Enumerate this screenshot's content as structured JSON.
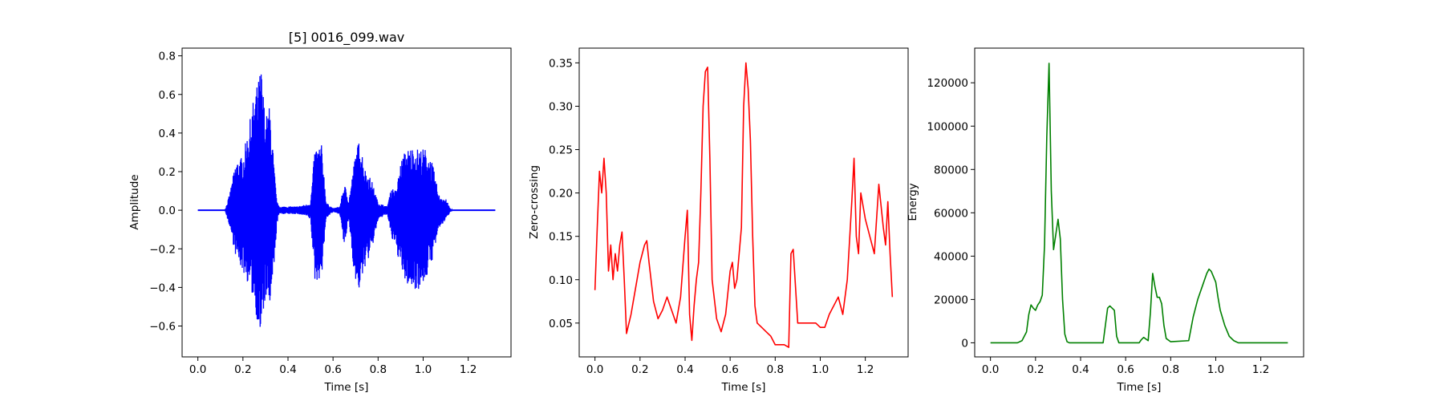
{
  "chart_data": [
    {
      "type": "line",
      "title": "[5] 0016_099.wav",
      "xlabel": "Time [s]",
      "ylabel": "Amplitude",
      "color": "#0000ff",
      "xlim": [
        -0.07,
        1.39
      ],
      "ylim": [
        -0.76,
        0.84
      ],
      "xticks": [
        "0.0",
        "0.2",
        "0.4",
        "0.6",
        "0.8",
        "1.0",
        "1.2"
      ],
      "xtick_values": [
        0.0,
        0.2,
        0.4,
        0.6,
        0.8,
        1.0,
        1.2
      ],
      "yticks": [
        "−0.6",
        "−0.4",
        "−0.2",
        "0.0",
        "0.2",
        "0.4",
        "0.6",
        "0.8"
      ],
      "ytick_values": [
        -0.6,
        -0.4,
        -0.2,
        0.0,
        0.2,
        0.4,
        0.6,
        0.8
      ],
      "x_range": [
        0.0,
        1.32
      ],
      "envelope": {
        "t": [
          0.0,
          0.12,
          0.14,
          0.17,
          0.2,
          0.23,
          0.25,
          0.27,
          0.28,
          0.3,
          0.32,
          0.34,
          0.35,
          0.36,
          0.4,
          0.44,
          0.48,
          0.5,
          0.52,
          0.55,
          0.57,
          0.6,
          0.63,
          0.65,
          0.66,
          0.67,
          0.7,
          0.72,
          0.74,
          0.77,
          0.8,
          0.84,
          0.86,
          0.88,
          0.9,
          0.92,
          0.95,
          0.98,
          1.01,
          1.04,
          1.07,
          1.1,
          1.12,
          1.13,
          1.32
        ],
        "upper": [
          0.0,
          0.0,
          0.08,
          0.26,
          0.28,
          0.46,
          0.6,
          0.68,
          0.76,
          0.48,
          0.55,
          0.2,
          0.05,
          0.02,
          0.02,
          0.02,
          0.03,
          0.04,
          0.33,
          0.34,
          0.04,
          0.01,
          0.02,
          0.14,
          0.1,
          0.05,
          0.3,
          0.38,
          0.22,
          0.16,
          0.04,
          0.02,
          0.12,
          0.1,
          0.25,
          0.31,
          0.33,
          0.32,
          0.32,
          0.25,
          0.08,
          0.06,
          0.01,
          0.0,
          0.0
        ],
        "lower": [
          0.0,
          0.0,
          -0.08,
          -0.25,
          -0.32,
          -0.4,
          -0.48,
          -0.62,
          -0.69,
          -0.45,
          -0.52,
          -0.3,
          -0.08,
          -0.02,
          -0.02,
          -0.02,
          -0.03,
          -0.05,
          -0.38,
          -0.34,
          -0.04,
          -0.01,
          -0.02,
          -0.2,
          -0.12,
          -0.05,
          -0.4,
          -0.42,
          -0.3,
          -0.22,
          -0.05,
          -0.02,
          -0.15,
          -0.2,
          -0.3,
          -0.38,
          -0.41,
          -0.41,
          -0.37,
          -0.26,
          -0.1,
          -0.05,
          -0.01,
          0.0,
          0.0
        ]
      }
    },
    {
      "type": "line",
      "title": "",
      "xlabel": "Time [s]",
      "ylabel": "Zero-crossing",
      "color": "#ff0000",
      "xlim": [
        -0.07,
        1.39
      ],
      "ylim": [
        0.011,
        0.367
      ],
      "xticks": [
        "0.0",
        "0.2",
        "0.4",
        "0.6",
        "0.8",
        "1.0",
        "1.2"
      ],
      "xtick_values": [
        0.0,
        0.2,
        0.4,
        0.6,
        0.8,
        1.0,
        1.2
      ],
      "yticks": [
        "0.05",
        "0.10",
        "0.15",
        "0.20",
        "0.25",
        "0.30",
        "0.35"
      ],
      "ytick_values": [
        0.05,
        0.1,
        0.15,
        0.2,
        0.25,
        0.3,
        0.35
      ],
      "x": [
        0.0,
        0.01,
        0.02,
        0.03,
        0.04,
        0.05,
        0.06,
        0.07,
        0.08,
        0.09,
        0.1,
        0.11,
        0.12,
        0.13,
        0.14,
        0.16,
        0.18,
        0.2,
        0.22,
        0.23,
        0.24,
        0.26,
        0.28,
        0.3,
        0.32,
        0.34,
        0.36,
        0.38,
        0.4,
        0.41,
        0.42,
        0.43,
        0.44,
        0.45,
        0.46,
        0.47,
        0.48,
        0.49,
        0.5,
        0.51,
        0.52,
        0.54,
        0.56,
        0.58,
        0.6,
        0.61,
        0.62,
        0.63,
        0.64,
        0.65,
        0.66,
        0.67,
        0.68,
        0.69,
        0.7,
        0.71,
        0.72,
        0.74,
        0.76,
        0.78,
        0.8,
        0.82,
        0.84,
        0.86,
        0.87,
        0.88,
        0.9,
        0.94,
        0.98,
        1.0,
        1.02,
        1.04,
        1.06,
        1.08,
        1.1,
        1.12,
        1.14,
        1.15,
        1.16,
        1.17,
        1.18,
        1.2,
        1.22,
        1.24,
        1.26,
        1.28,
        1.29,
        1.3,
        1.31,
        1.32
      ],
      "y": [
        0.088,
        0.16,
        0.225,
        0.2,
        0.24,
        0.2,
        0.11,
        0.14,
        0.1,
        0.13,
        0.11,
        0.14,
        0.155,
        0.1,
        0.038,
        0.06,
        0.09,
        0.12,
        0.14,
        0.145,
        0.12,
        0.075,
        0.055,
        0.065,
        0.08,
        0.065,
        0.05,
        0.08,
        0.15,
        0.18,
        0.06,
        0.03,
        0.07,
        0.1,
        0.12,
        0.2,
        0.3,
        0.34,
        0.345,
        0.24,
        0.1,
        0.055,
        0.04,
        0.06,
        0.11,
        0.12,
        0.09,
        0.1,
        0.13,
        0.16,
        0.3,
        0.35,
        0.32,
        0.26,
        0.15,
        0.07,
        0.05,
        0.045,
        0.04,
        0.035,
        0.025,
        0.025,
        0.025,
        0.022,
        0.13,
        0.135,
        0.05,
        0.05,
        0.05,
        0.045,
        0.045,
        0.06,
        0.07,
        0.08,
        0.06,
        0.1,
        0.19,
        0.24,
        0.15,
        0.13,
        0.2,
        0.17,
        0.15,
        0.13,
        0.21,
        0.16,
        0.14,
        0.19,
        0.13,
        0.08
      ]
    },
    {
      "type": "line",
      "title": "",
      "xlabel": "Time [s]",
      "ylabel": "Energy",
      "color": "#008000",
      "xlim": [
        -0.07,
        1.39
      ],
      "ylim": [
        -6500,
        136000
      ],
      "xticks": [
        "0.0",
        "0.2",
        "0.4",
        "0.6",
        "0.8",
        "1.0",
        "1.2"
      ],
      "xtick_values": [
        0.0,
        0.2,
        0.4,
        0.6,
        0.8,
        1.0,
        1.2
      ],
      "yticks": [
        "0",
        "20000",
        "40000",
        "60000",
        "80000",
        "100000",
        "120000"
      ],
      "ytick_values": [
        0,
        20000,
        40000,
        60000,
        80000,
        100000,
        120000
      ],
      "x": [
        0.0,
        0.12,
        0.14,
        0.16,
        0.17,
        0.18,
        0.19,
        0.2,
        0.21,
        0.22,
        0.23,
        0.24,
        0.25,
        0.26,
        0.27,
        0.28,
        0.29,
        0.3,
        0.31,
        0.32,
        0.33,
        0.34,
        0.35,
        0.36,
        0.38,
        0.5,
        0.51,
        0.52,
        0.53,
        0.54,
        0.55,
        0.56,
        0.57,
        0.6,
        0.66,
        0.67,
        0.68,
        0.7,
        0.71,
        0.72,
        0.73,
        0.74,
        0.75,
        0.76,
        0.77,
        0.78,
        0.8,
        0.88,
        0.9,
        0.92,
        0.94,
        0.96,
        0.97,
        0.98,
        1.0,
        1.01,
        1.02,
        1.04,
        1.06,
        1.08,
        1.1,
        1.32
      ],
      "y": [
        0,
        0,
        1000,
        5000,
        13000,
        17500,
        16000,
        15000,
        17500,
        19000,
        22000,
        45000,
        95000,
        129000,
        70000,
        43000,
        50000,
        57000,
        48000,
        20000,
        4000,
        500,
        0,
        0,
        0,
        0,
        8000,
        16000,
        17000,
        16000,
        15000,
        3000,
        0,
        0,
        0,
        1500,
        2500,
        1000,
        14000,
        32000,
        26000,
        21000,
        21000,
        18000,
        8000,
        2000,
        500,
        1000,
        12000,
        20000,
        26000,
        32000,
        34000,
        33000,
        28000,
        21000,
        15000,
        8000,
        3000,
        1000,
        0,
        0
      ]
    }
  ]
}
